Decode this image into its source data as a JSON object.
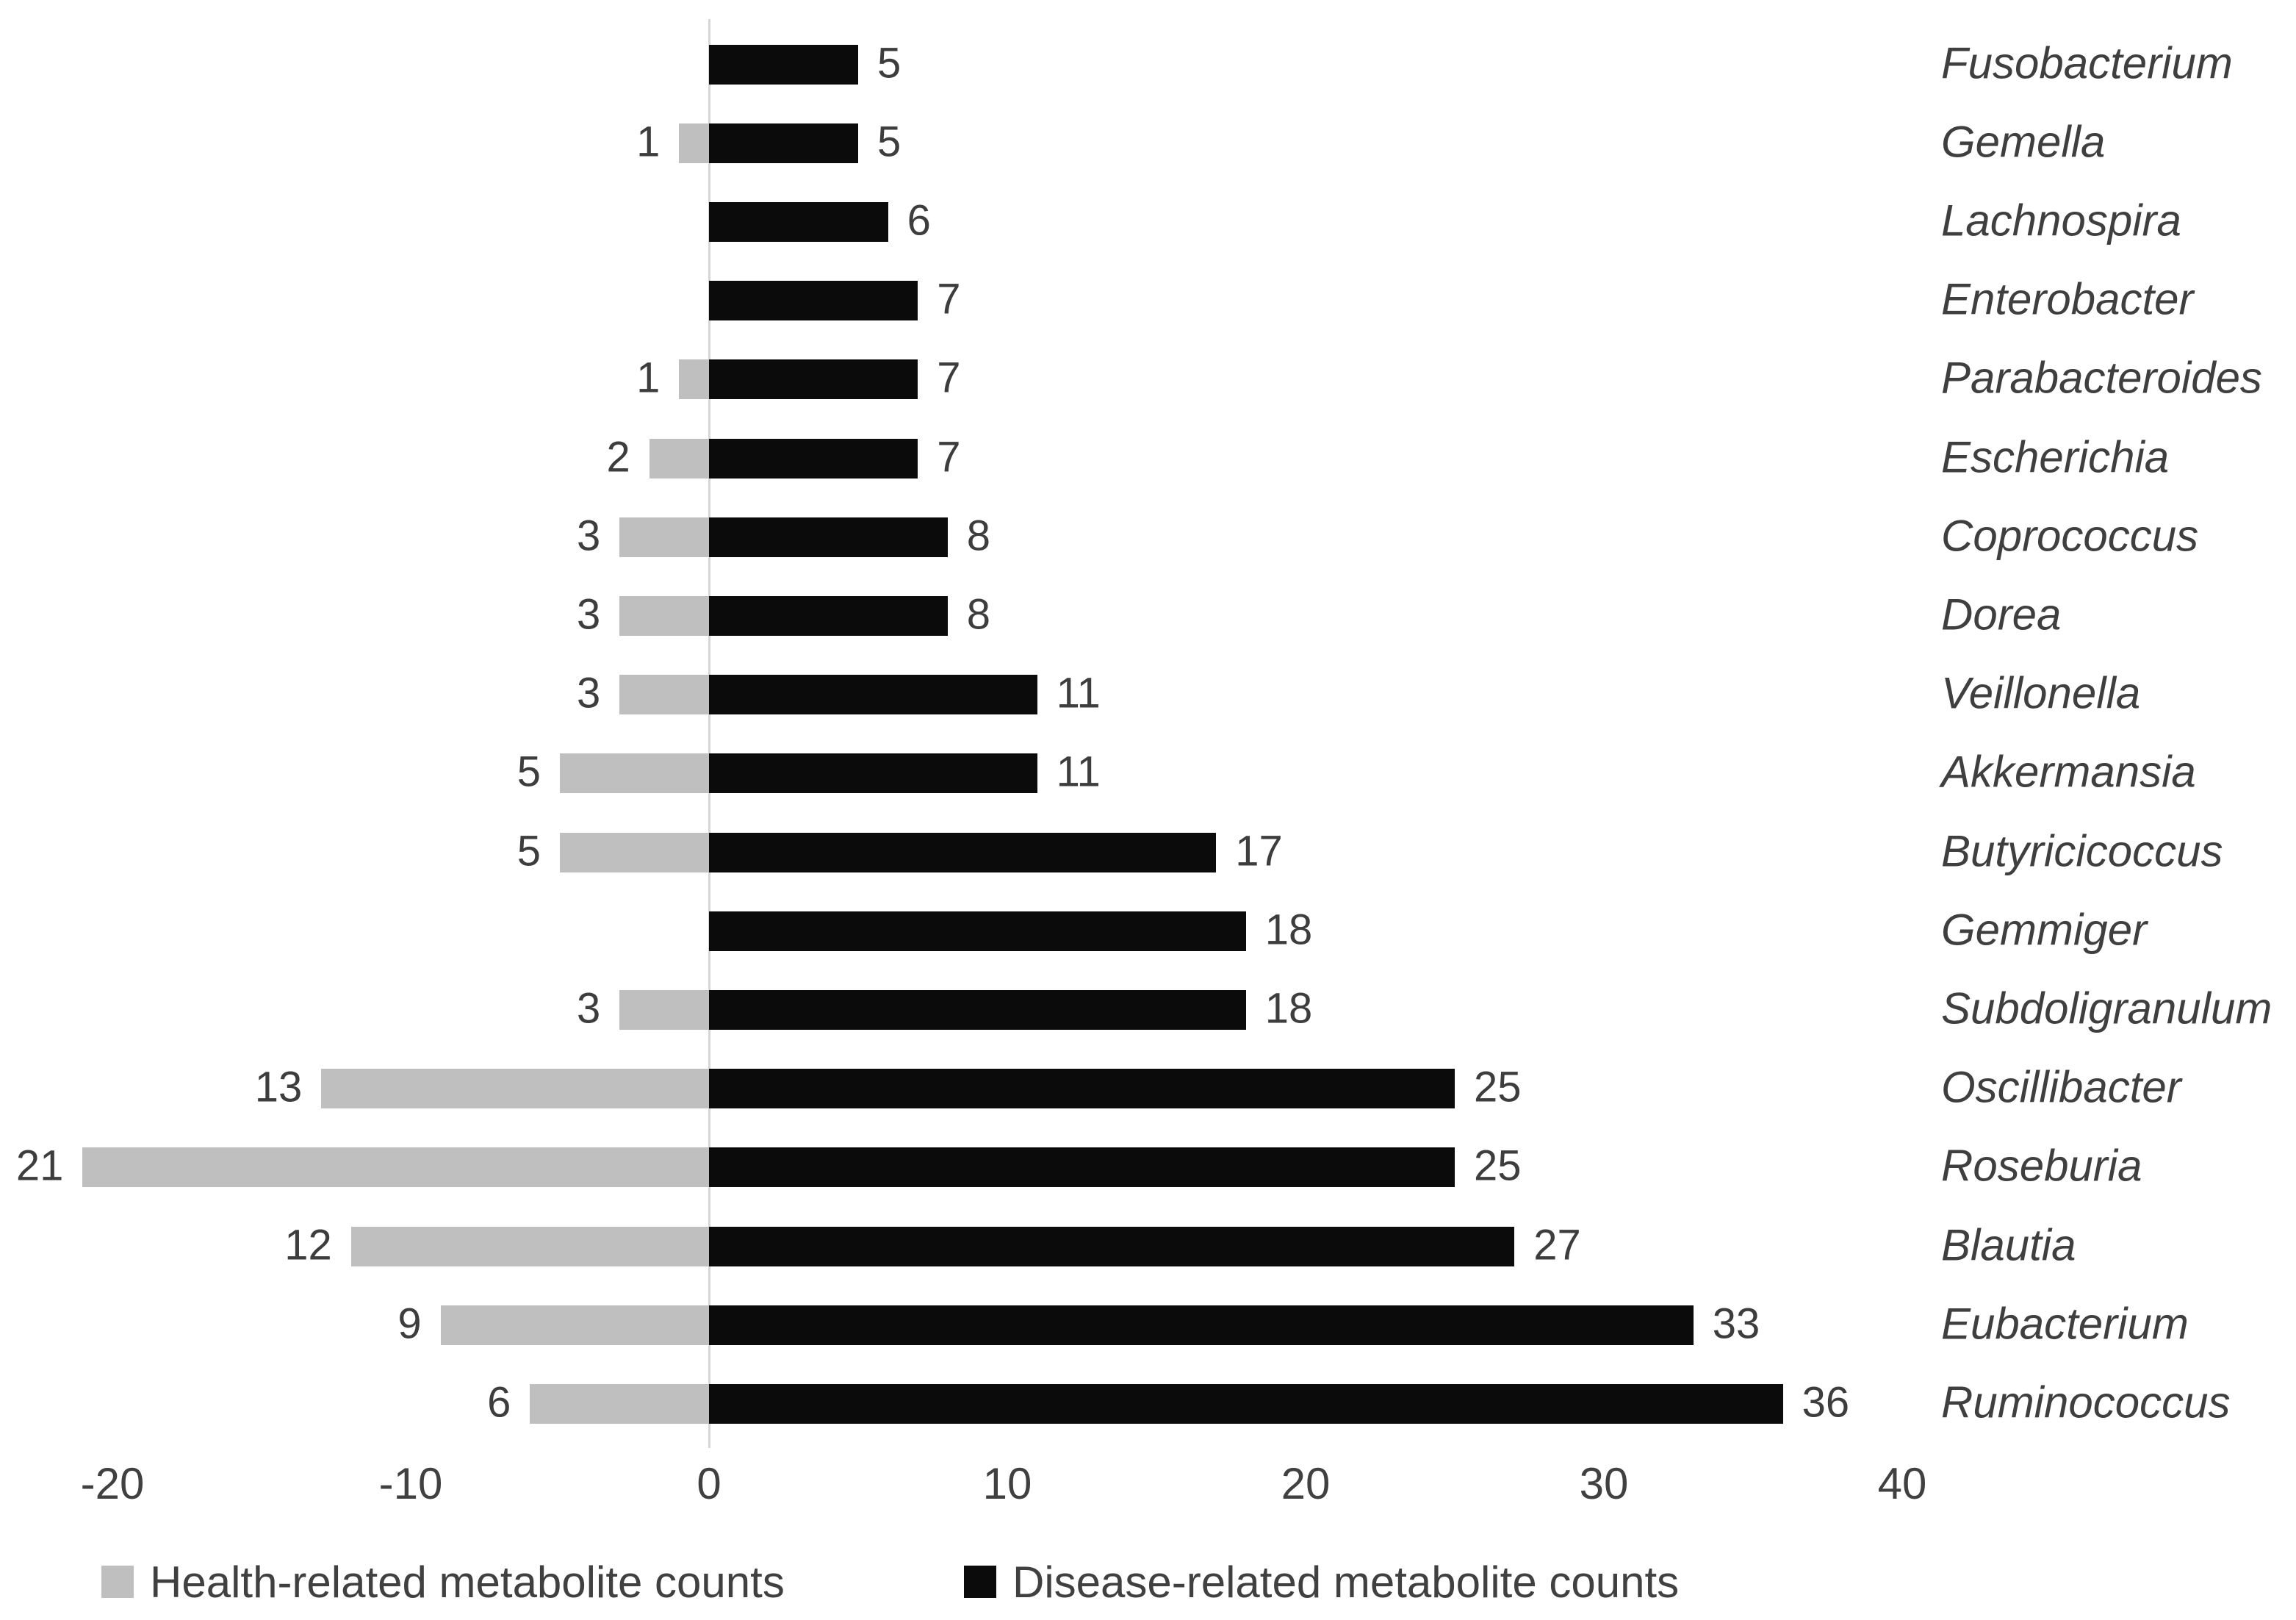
{
  "chart_data": {
    "type": "bar",
    "variant": "horizontal-diverging",
    "title": "",
    "xlabel": "",
    "ylabel": "",
    "grid": false,
    "legend_position": "bottom",
    "xlim": [
      -22,
      40
    ],
    "x_ticks": [
      -20,
      -10,
      0,
      10,
      20,
      30,
      40
    ],
    "categories": [
      "Fusobacterium",
      "Gemella",
      "Lachnospira",
      "Enterobacter",
      "Parabacteroides",
      "Escherichia",
      "Coprococcus",
      "Dorea",
      "Veillonella",
      "Akkermansia",
      "Butyricicoccus",
      "Gemmiger",
      "Subdoligranulum",
      "Oscillibacter",
      "Roseburia",
      "Blautia",
      "Eubacterium",
      "Ruminococcus"
    ],
    "series": [
      {
        "name": "Health-related metabolite counts",
        "color": "#bfbfbf",
        "direction": "negative",
        "values": [
          null,
          1,
          null,
          null,
          1,
          2,
          3,
          3,
          3,
          5,
          5,
          null,
          3,
          13,
          21,
          12,
          9,
          6
        ]
      },
      {
        "name": "Disease-related metabolite counts",
        "color": "#0b0b0b",
        "direction": "positive",
        "values": [
          5,
          5,
          6,
          7,
          7,
          7,
          8,
          8,
          11,
          11,
          17,
          18,
          18,
          25,
          25,
          27,
          33,
          36
        ]
      }
    ]
  }
}
